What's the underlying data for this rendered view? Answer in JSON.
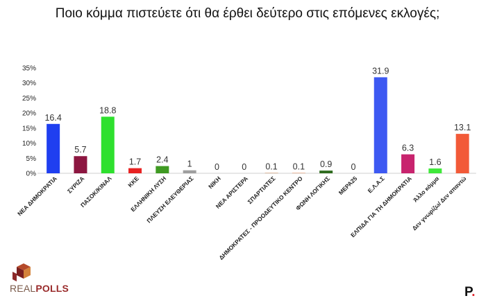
{
  "title": "Ποιο κόμμα πιστεύετε ότι θα έρθει δεύτερο στις επόμενες εκλογές;",
  "logo": {
    "text_real": "REAL",
    "text_polls": "POLLS"
  },
  "publisher_mark": {
    "letter": "P",
    "dot": "."
  },
  "chart_data": {
    "type": "bar",
    "ylim": [
      0,
      35
    ],
    "yticks": [
      "0%",
      "5%",
      "10%",
      "15%",
      "20%",
      "25%",
      "30%",
      "35%"
    ],
    "ytick_values": [
      0,
      5,
      10,
      15,
      20,
      25,
      30,
      35
    ],
    "grid": false,
    "categories": [
      "ΝΕΑ ΔΗΜΟΚΡΑΤΙΑ",
      "ΣΥΡΙΖΑ",
      "ΠΑΣΟΚ/ΚΙΝΑΛ",
      "ΚΚΕ",
      "ΕΛΛΗΝΙΚΗ ΛΥΣΗ",
      "ΠΛΕΥΣΗ ΕΛΕΥΘΕΡΙΑΣ",
      "ΝΙΚΗ",
      "ΝΕΑ ΑΡΙΣΤΕΡΑ",
      "ΣΠΑΡΤΙΑΤΕΣ",
      "ΔΗΜΟΚΡΑΤΕΣ - ΠΡΟΟΔΕΥΤΙΚΟ ΚΕΝΤΡΟ",
      "ΦΩΝΗ ΛΟΓΙΚΗΣ",
      "ΜΕΡΑ25",
      "Ε.Λ.Α.Σ",
      "ΕΛΠΙΔΑ ΓΙΑ ΤΗ ΔΗΜΟΚΡΑΤΙΑ",
      "Άλλο κόμμα",
      "Δεν γνωρίζω/ Δεν απαντώ"
    ],
    "values": [
      16.4,
      5.7,
      18.8,
      1.7,
      2.4,
      1,
      0,
      0,
      0.1,
      0.1,
      0.9,
      0,
      31.9,
      6.3,
      1.6,
      13.1
    ],
    "value_labels": [
      "16.4",
      "5.7",
      "18.8",
      "1.7",
      "2.4",
      "1",
      "0",
      "0",
      "0.1",
      "0.1",
      "0.9",
      "0",
      "31.9",
      "6.3",
      "1.6",
      "13.1"
    ],
    "colors": [
      "#1f3ff0",
      "#8c1640",
      "#2ee02e",
      "#e82222",
      "#3f9a22",
      "#9e9e9e",
      "#8a8a8a",
      "#c23030",
      "#bd6a2a",
      "#d96a2a",
      "#2e6b1e",
      "#e05a20",
      "#3d59f2",
      "#c8246e",
      "#3fe83a",
      "#f25a38"
    ]
  }
}
